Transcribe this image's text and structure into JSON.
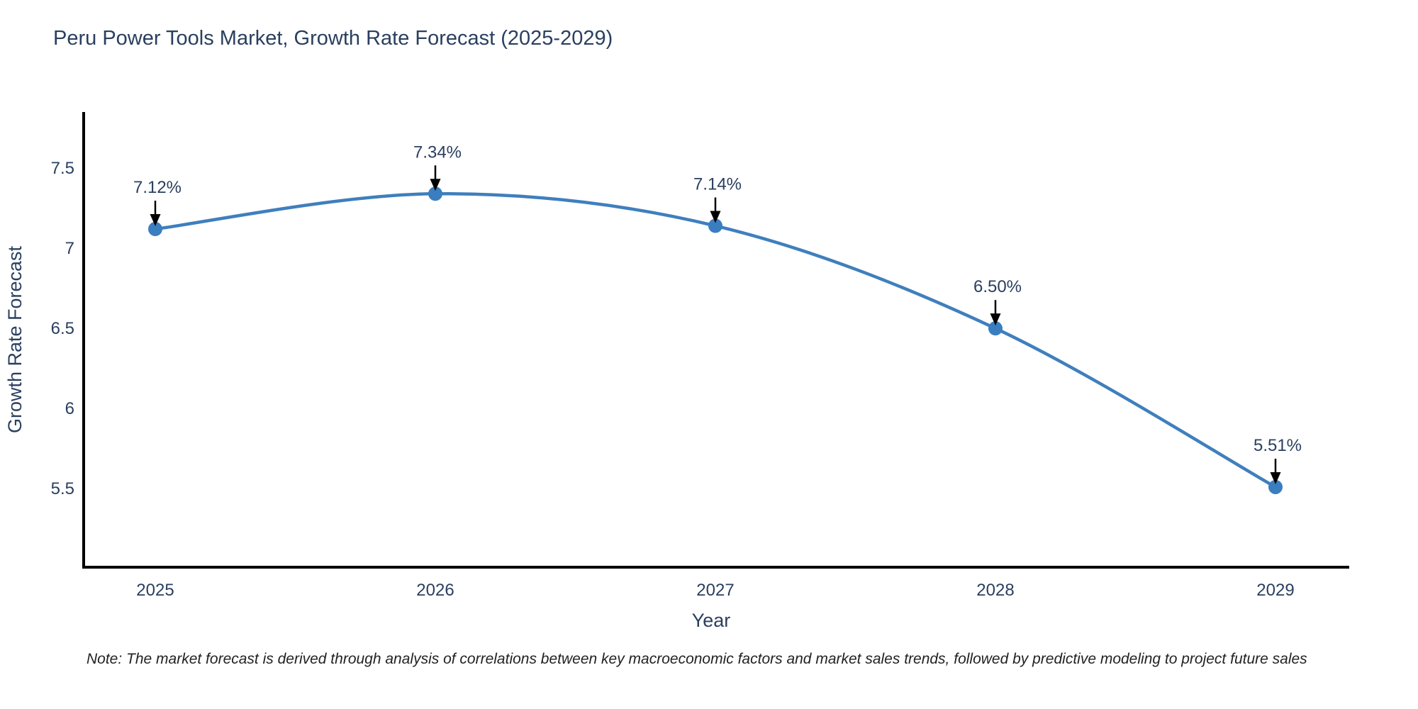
{
  "title": "Peru Power Tools Market, Growth Rate Forecast (2025-2029)",
  "footnote": "Note: The market forecast is derived through analysis of correlations between key macroeconomic factors and market sales trends, followed by predictive modeling to project future sales",
  "chart_data": {
    "type": "line",
    "line_shape": "spline",
    "x": [
      "2025",
      "2026",
      "2027",
      "2028",
      "2029"
    ],
    "values": [
      7.12,
      7.34,
      7.14,
      6.5,
      5.51
    ],
    "point_labels": [
      "7.12%",
      "7.34%",
      "7.14%",
      "6.50%",
      "5.51%"
    ],
    "title": "Peru Power Tools Market, Growth Rate Forecast (2025-2029)",
    "xlabel": "Year",
    "ylabel": "Growth Rate Forecast",
    "ytick_labels": [
      "5.5",
      "6",
      "6.5",
      "7",
      "7.5"
    ],
    "yticks": [
      5.5,
      6,
      6.5,
      7,
      7.5
    ],
    "ylim": [
      5.01,
      7.85
    ],
    "grid": false,
    "legend": false,
    "colors": {
      "line": "#3f7fbd",
      "marker": "#3a7ebf",
      "text": "#2a3f5f",
      "axis": "#000000",
      "arrow": "#000000",
      "background": "#ffffff"
    }
  }
}
